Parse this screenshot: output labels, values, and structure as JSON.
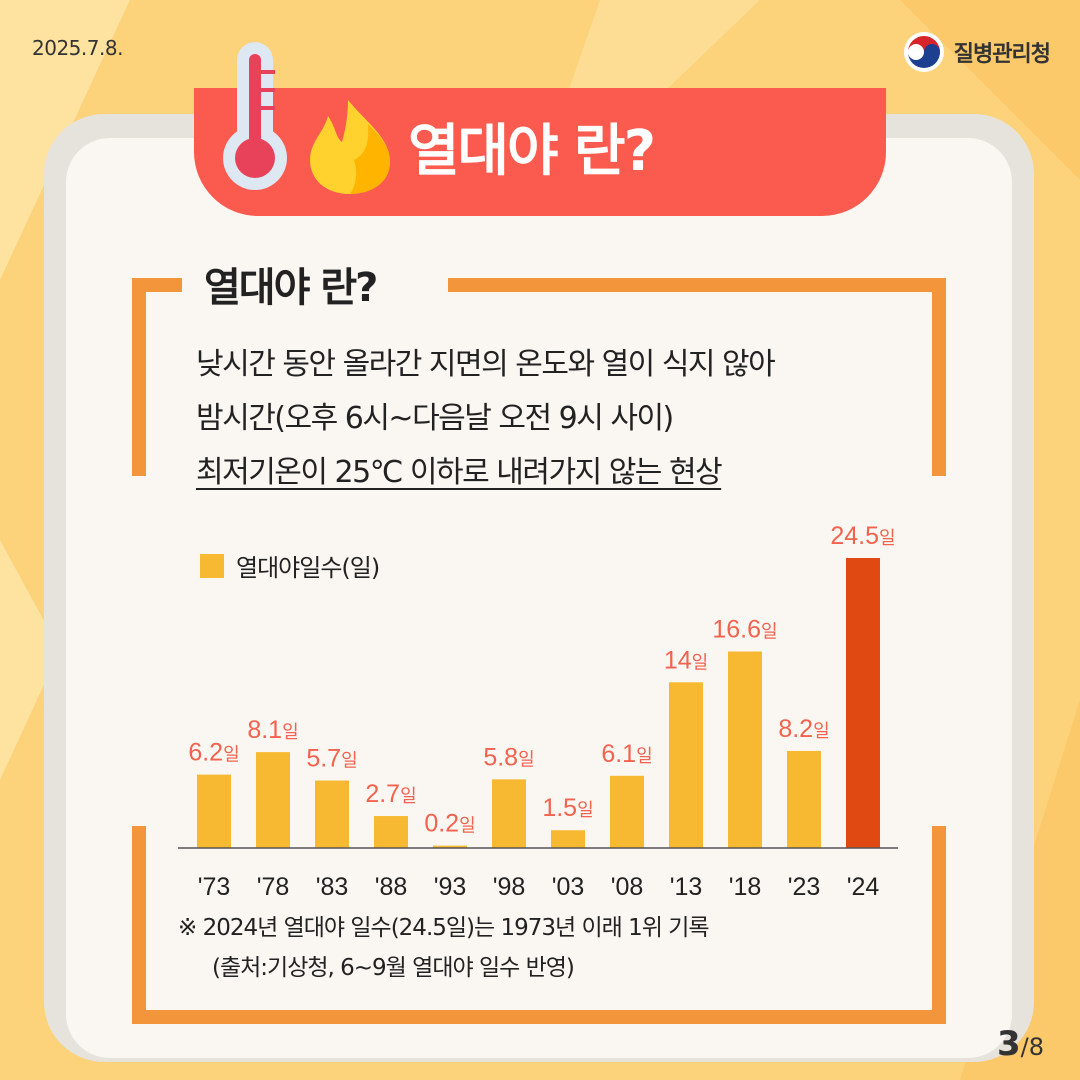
{
  "date": "2025.7.8.",
  "org": {
    "name": "질병관리청",
    "logo_icon": "taegeuk-icon"
  },
  "banner": {
    "title": "열대야 란?",
    "icons": [
      "thermometer-icon",
      "flame-icon"
    ]
  },
  "section": {
    "title": "열대야 란?",
    "lines": [
      "낮시간 동안 올라간 지면의 온도와 열이 식지 않아",
      "밤시간(오후 6시~다음날 오전 9시 사이)",
      "최저기온이 25℃ 이하로 내려가지 않는 현상"
    ]
  },
  "chart_data": {
    "type": "bar",
    "legend": "열대야일수(일)",
    "categories": [
      "'73",
      "'78",
      "'83",
      "'88",
      "'93",
      "'98",
      "'03",
      "'08",
      "'13",
      "'18",
      "'23",
      "'24"
    ],
    "values": [
      6.2,
      8.1,
      5.7,
      2.7,
      0.2,
      5.8,
      1.5,
      6.1,
      14,
      16.6,
      8.2,
      24.5
    ],
    "value_labels": [
      "6.2",
      "8.1",
      "5.7",
      "2.7",
      "0.2",
      "5.8",
      "1.5",
      "6.1",
      "14",
      "16.6",
      "8.2",
      "24.5"
    ],
    "unit": "일",
    "ylim": [
      0,
      24.5
    ],
    "colors": {
      "default": "#f7b932",
      "highlight": "#e04a12",
      "label": "#f3624e"
    },
    "highlight_index": 11
  },
  "notes": [
    "※ 2024년 열대야 일수(24.5일)는 1973년 이래 1위 기록",
    "(출처:기상청, 6~9월 열대야 일수 반영)"
  ],
  "page": {
    "current": "3",
    "total": "/8"
  }
}
